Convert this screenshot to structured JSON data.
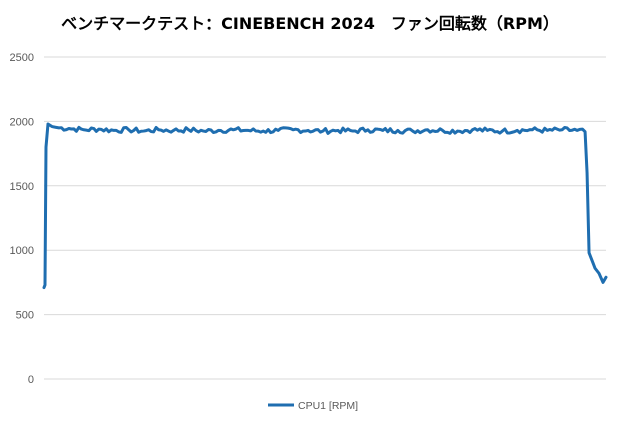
{
  "chart_data": {
    "type": "line",
    "title": "ベンチマークテスト：CINEBENCH 2024　ファン回転数（RPM）",
    "xlabel": "",
    "ylabel": "",
    "ylim": [
      0,
      2500
    ],
    "yticks": [
      0,
      500,
      1000,
      1500,
      2000,
      2500
    ],
    "tick_labels": [
      "0",
      "500",
      "1000",
      "1500",
      "2000",
      "2500"
    ],
    "grid": true,
    "legend_position": "bottom",
    "series": [
      {
        "name": "CPU1 [RPM]",
        "color": "#1f6eb0",
        "x": [
          0,
          1,
          2,
          4,
          8,
          15,
          25,
          40,
          55,
          70,
          85,
          100,
          115,
          130,
          145,
          160,
          175,
          190,
          205,
          220,
          235,
          250,
          265,
          280,
          295,
          310,
          325,
          340,
          355,
          370,
          385,
          400,
          415,
          430,
          445,
          460,
          475,
          490,
          505,
          520,
          535,
          543,
          545,
          547,
          549,
          551,
          553,
          557,
          561,
          564
        ],
        "values": [
          710,
          730,
          1800,
          1980,
          1960,
          1950,
          1945,
          1935,
          1940,
          1930,
          1935,
          1925,
          1935,
          1930,
          1935,
          1925,
          1930,
          1935,
          1930,
          1925,
          1930,
          1935,
          1930,
          1925,
          1930,
          1925,
          1935,
          1930,
          1930,
          1925,
          1935,
          1930,
          1925,
          1935,
          1930,
          1925,
          1930,
          1935,
          1930,
          1935,
          1930,
          1920,
          1600,
          980,
          940,
          900,
          860,
          820,
          750,
          790
        ]
      }
    ]
  }
}
